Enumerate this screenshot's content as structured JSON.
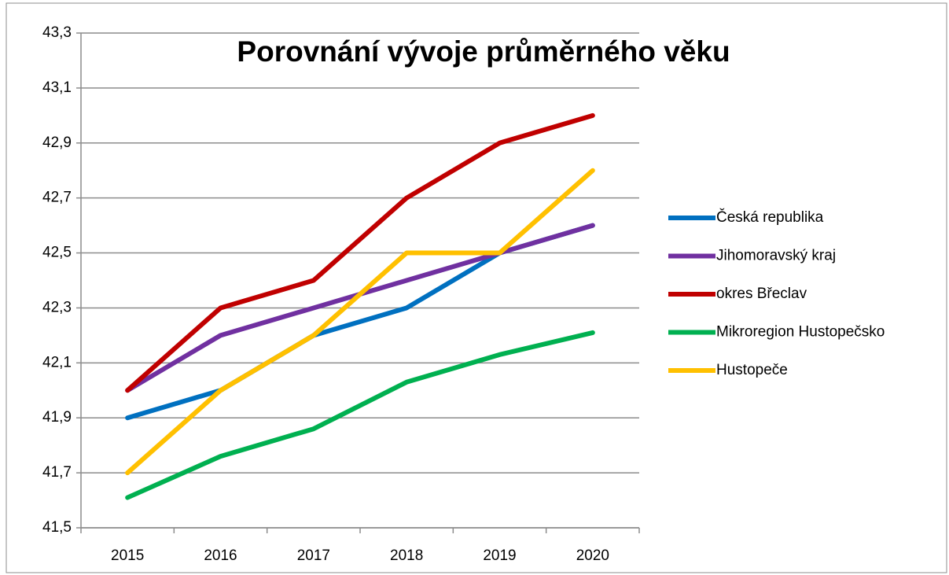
{
  "chart_data": {
    "type": "line",
    "title": "Porovnání vývoje průměrného věku",
    "categories": [
      "2015",
      "2016",
      "2017",
      "2018",
      "2019",
      "2020"
    ],
    "series": [
      {
        "name": "Česká republika",
        "color": "#0070c0",
        "values": [
          41.9,
          42.0,
          42.2,
          42.3,
          42.5,
          42.6
        ]
      },
      {
        "name": "Jihomoravský kraj",
        "color": "#7030a0",
        "values": [
          42.0,
          42.2,
          42.3,
          42.4,
          42.5,
          42.6
        ]
      },
      {
        "name": "okres Břeclav",
        "color": "#c00000",
        "values": [
          42.0,
          42.3,
          42.4,
          42.7,
          42.9,
          43.0
        ]
      },
      {
        "name": "Mikroregion Hustopečsko",
        "color": "#00b050",
        "values": [
          41.61,
          41.76,
          41.86,
          42.03,
          42.13,
          42.21
        ]
      },
      {
        "name": "Hustopeče",
        "color": "#ffc000",
        "values": [
          41.7,
          42.0,
          42.2,
          42.5,
          42.5,
          42.8
        ]
      }
    ],
    "ylim": [
      41.5,
      43.3
    ],
    "yticks": [
      {
        "value": 41.5,
        "label": "41,5"
      },
      {
        "value": 41.7,
        "label": "41,7"
      },
      {
        "value": 41.9,
        "label": "41,9"
      },
      {
        "value": 42.1,
        "label": "42,1"
      },
      {
        "value": 42.3,
        "label": "42,3"
      },
      {
        "value": 42.5,
        "label": "42,5"
      },
      {
        "value": 42.7,
        "label": "42,7"
      },
      {
        "value": 42.9,
        "label": "42,9"
      },
      {
        "value": 43.1,
        "label": "43,1"
      },
      {
        "value": 43.3,
        "label": "43,3"
      }
    ],
    "grid": true,
    "legend": "right"
  }
}
